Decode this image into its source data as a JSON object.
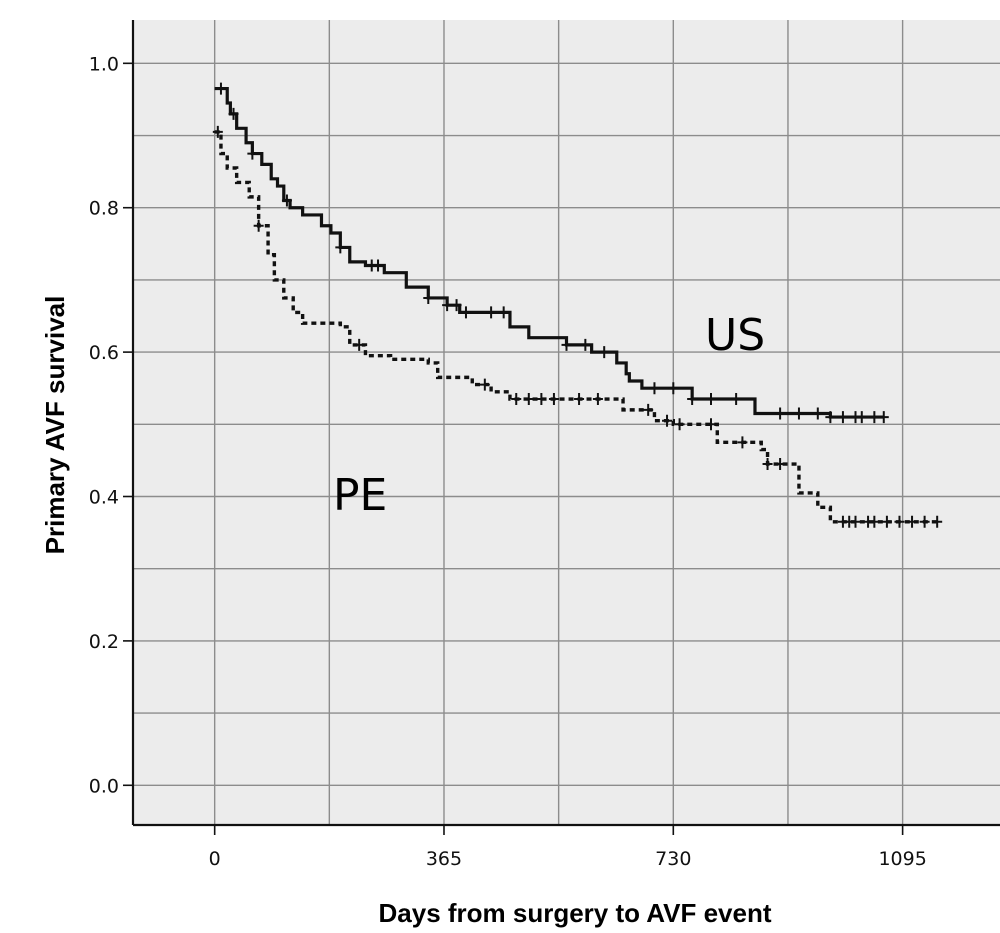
{
  "chart_data": {
    "type": "line",
    "title": "",
    "xlabel": "Days from surgery to AVF event",
    "ylabel": "Primary AVF survival",
    "x_ticks": [
      0,
      365,
      730,
      1095
    ],
    "y_ticks": [
      "0.0",
      "0.2",
      "0.4",
      "0.6",
      "0.8",
      "1.0"
    ],
    "xlim": [
      -130,
      1250
    ],
    "ylim": [
      -0.055,
      1.06
    ],
    "grid": true,
    "legend": "none",
    "annotations": [
      {
        "text": "US",
        "series": "US"
      },
      {
        "text": "PE",
        "series": "PE"
      }
    ],
    "series": [
      {
        "name": "US",
        "style": "solid",
        "color": "#111111",
        "steps": [
          [
            0,
            0.965
          ],
          [
            20,
            0.945
          ],
          [
            25,
            0.93
          ],
          [
            35,
            0.91
          ],
          [
            50,
            0.89
          ],
          [
            60,
            0.875
          ],
          [
            75,
            0.86
          ],
          [
            90,
            0.84
          ],
          [
            100,
            0.83
          ],
          [
            110,
            0.81
          ],
          [
            120,
            0.8
          ],
          [
            140,
            0.79
          ],
          [
            170,
            0.775
          ],
          [
            185,
            0.765
          ],
          [
            200,
            0.745
          ],
          [
            215,
            0.725
          ],
          [
            240,
            0.72
          ],
          [
            270,
            0.71
          ],
          [
            305,
            0.69
          ],
          [
            340,
            0.675
          ],
          [
            370,
            0.665
          ],
          [
            390,
            0.655
          ],
          [
            470,
            0.635
          ],
          [
            500,
            0.62
          ],
          [
            560,
            0.61
          ],
          [
            600,
            0.6
          ],
          [
            640,
            0.585
          ],
          [
            655,
            0.57
          ],
          [
            660,
            0.56
          ],
          [
            680,
            0.55
          ],
          [
            720,
            0.55
          ],
          [
            760,
            0.535
          ],
          [
            860,
            0.515
          ],
          [
            980,
            0.51
          ],
          [
            1065,
            0.51
          ]
        ],
        "censored": [
          10,
          30,
          60,
          115,
          200,
          250,
          260,
          340,
          370,
          385,
          400,
          440,
          460,
          560,
          590,
          620,
          700,
          730,
          760,
          790,
          830,
          900,
          930,
          960,
          980,
          1000,
          1020,
          1030,
          1050,
          1065
        ]
      },
      {
        "name": "PE",
        "style": "dashed",
        "color": "#111111",
        "steps": [
          [
            0,
            0.905
          ],
          [
            10,
            0.875
          ],
          [
            20,
            0.855
          ],
          [
            35,
            0.835
          ],
          [
            55,
            0.815
          ],
          [
            70,
            0.775
          ],
          [
            85,
            0.735
          ],
          [
            95,
            0.7
          ],
          [
            110,
            0.675
          ],
          [
            125,
            0.655
          ],
          [
            140,
            0.64
          ],
          [
            200,
            0.635
          ],
          [
            215,
            0.61
          ],
          [
            240,
            0.595
          ],
          [
            280,
            0.59
          ],
          [
            340,
            0.585
          ],
          [
            355,
            0.565
          ],
          [
            410,
            0.555
          ],
          [
            440,
            0.545
          ],
          [
            470,
            0.535
          ],
          [
            650,
            0.52
          ],
          [
            700,
            0.505
          ],
          [
            730,
            0.5
          ],
          [
            800,
            0.475
          ],
          [
            870,
            0.465
          ],
          [
            880,
            0.445
          ],
          [
            930,
            0.405
          ],
          [
            960,
            0.385
          ],
          [
            980,
            0.365
          ],
          [
            1150,
            0.365
          ]
        ],
        "censored": [
          5,
          70,
          230,
          430,
          480,
          500,
          520,
          540,
          580,
          610,
          690,
          720,
          740,
          790,
          840,
          880,
          900,
          1000,
          1010,
          1020,
          1040,
          1050,
          1070,
          1090,
          1110,
          1130,
          1150
        ]
      }
    ]
  }
}
